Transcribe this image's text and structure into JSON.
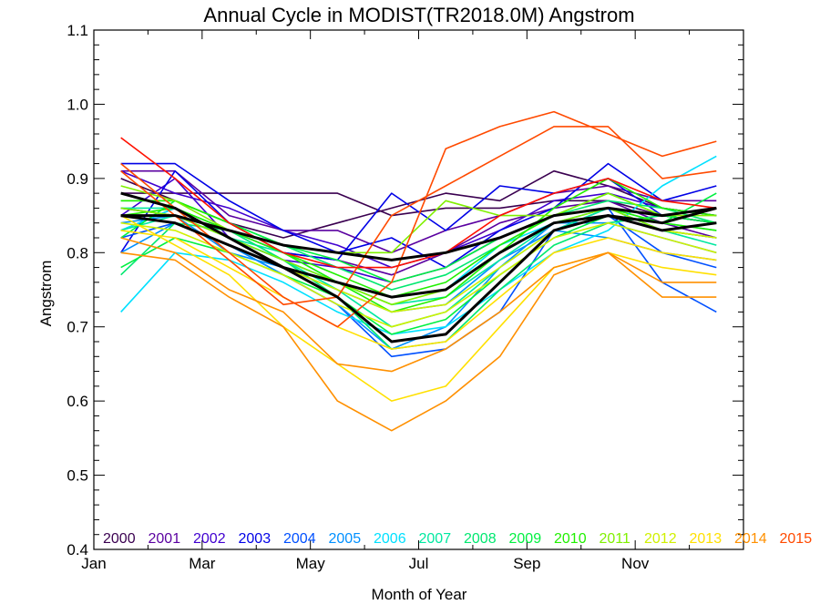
{
  "chart_data": {
    "type": "line",
    "title": "Annual Cycle in MODIST(TR2018.0M) Angstrom",
    "xlabel": "Month of Year",
    "ylabel": "Angstrom",
    "xlim": [
      1,
      13
    ],
    "ylim": [
      0.4,
      1.1
    ],
    "x_ticks": [
      1,
      3,
      5,
      7,
      9,
      11
    ],
    "x_tick_labels": [
      "Jan",
      "Mar",
      "May",
      "Jul",
      "Sep",
      "Nov"
    ],
    "y_ticks": [
      0.4,
      0.5,
      0.6,
      0.7,
      0.8,
      0.9,
      1.0,
      1.1
    ],
    "y_tick_labels": [
      "0.4",
      "0.5",
      "0.6",
      "0.7",
      "0.8",
      "0.9",
      "1.0",
      "1.1"
    ],
    "grid": false,
    "legend_placement": "bottom",
    "x": [
      1.5,
      2.5,
      3.5,
      4.5,
      5.5,
      6.5,
      7.5,
      8.5,
      9.5,
      10.5,
      11.5,
      12.5
    ],
    "series": [
      {
        "name": "2000",
        "color": "#3a0050",
        "values": [
          0.88,
          0.88,
          0.88,
          0.88,
          0.88,
          0.85,
          0.86,
          0.86,
          0.87,
          0.87,
          0.85,
          0.84
        ]
      },
      {
        "name": "2000",
        "color": "#3a0050",
        "values": [
          0.9,
          0.87,
          0.84,
          0.82,
          0.84,
          0.86,
          0.88,
          0.87,
          0.91,
          0.89,
          0.86,
          0.85
        ]
      },
      {
        "name": "2001",
        "color": "#5a00a0",
        "values": [
          0.91,
          0.91,
          0.85,
          0.83,
          0.83,
          0.8,
          0.83,
          0.85,
          0.88,
          0.89,
          0.87,
          0.87
        ]
      },
      {
        "name": "2001",
        "color": "#5a00a0",
        "values": [
          0.86,
          0.85,
          0.83,
          0.8,
          0.79,
          0.77,
          0.8,
          0.84,
          0.86,
          0.87,
          0.84,
          0.82
        ]
      },
      {
        "name": "2002",
        "color": "#4000d0",
        "values": [
          0.91,
          0.88,
          0.86,
          0.83,
          0.81,
          0.78,
          0.8,
          0.83,
          0.87,
          0.88,
          0.86,
          0.85
        ]
      },
      {
        "name": "2002",
        "color": "#4000d0",
        "values": [
          0.85,
          0.9,
          0.82,
          0.79,
          0.78,
          0.76,
          0.78,
          0.82,
          0.85,
          0.86,
          0.83,
          0.82
        ]
      },
      {
        "name": "2003",
        "color": "#0000e6",
        "values": [
          0.92,
          0.92,
          0.87,
          0.83,
          0.8,
          0.82,
          0.78,
          0.83,
          0.86,
          0.92,
          0.87,
          0.89
        ]
      },
      {
        "name": "2003",
        "color": "#0000e6",
        "values": [
          0.8,
          0.91,
          0.84,
          0.8,
          0.79,
          0.88,
          0.83,
          0.89,
          0.88,
          0.9,
          0.85,
          0.84
        ]
      },
      {
        "name": "2004",
        "color": "#0050ff",
        "values": [
          0.83,
          0.86,
          0.82,
          0.79,
          0.76,
          0.74,
          0.75,
          0.8,
          0.84,
          0.85,
          0.8,
          0.78
        ]
      },
      {
        "name": "2004",
        "color": "#0050ff",
        "values": [
          0.82,
          0.84,
          0.81,
          0.77,
          0.73,
          0.66,
          0.67,
          0.72,
          0.83,
          0.86,
          0.76,
          0.72
        ]
      },
      {
        "name": "2005",
        "color": "#0090ff",
        "values": [
          0.8,
          0.84,
          0.81,
          0.77,
          0.73,
          0.67,
          0.7,
          0.78,
          0.84,
          0.84,
          0.82,
          0.8
        ]
      },
      {
        "name": "2005",
        "color": "#0090ff",
        "values": [
          0.84,
          0.85,
          0.8,
          0.78,
          0.75,
          0.72,
          0.73,
          0.79,
          0.83,
          0.82,
          0.8,
          0.79
        ]
      },
      {
        "name": "2006",
        "color": "#00e0ff",
        "values": [
          0.72,
          0.8,
          0.79,
          0.76,
          0.72,
          0.69,
          0.7,
          0.75,
          0.8,
          0.83,
          0.89,
          0.93
        ]
      },
      {
        "name": "2006",
        "color": "#00e0ff",
        "values": [
          0.83,
          0.86,
          0.82,
          0.79,
          0.76,
          0.74,
          0.75,
          0.81,
          0.84,
          0.86,
          0.84,
          0.83
        ]
      },
      {
        "name": "2007",
        "color": "#00e8a0",
        "values": [
          0.83,
          0.85,
          0.82,
          0.8,
          0.76,
          0.73,
          0.74,
          0.79,
          0.84,
          0.85,
          0.83,
          0.81
        ]
      },
      {
        "name": "2007",
        "color": "#00e8a0",
        "values": [
          0.86,
          0.86,
          0.83,
          0.79,
          0.75,
          0.7,
          0.72,
          0.78,
          0.83,
          0.86,
          0.83,
          0.82
        ]
      },
      {
        "name": "2008",
        "color": "#00e870",
        "values": [
          0.77,
          0.84,
          0.83,
          0.79,
          0.74,
          0.67,
          0.68,
          0.75,
          0.81,
          0.84,
          0.85,
          0.86
        ]
      },
      {
        "name": "2008",
        "color": "#00e870",
        "values": [
          0.87,
          0.87,
          0.84,
          0.81,
          0.78,
          0.75,
          0.77,
          0.81,
          0.85,
          0.87,
          0.86,
          0.84
        ]
      },
      {
        "name": "2009",
        "color": "#00f040",
        "values": [
          0.82,
          0.87,
          0.84,
          0.81,
          0.79,
          0.76,
          0.78,
          0.82,
          0.85,
          0.88,
          0.85,
          0.84
        ]
      },
      {
        "name": "2009",
        "color": "#00f040",
        "values": [
          0.78,
          0.82,
          0.8,
          0.77,
          0.74,
          0.69,
          0.71,
          0.77,
          0.82,
          0.85,
          0.84,
          0.88
        ]
      },
      {
        "name": "2010",
        "color": "#20f000",
        "values": [
          0.87,
          0.87,
          0.84,
          0.8,
          0.76,
          0.72,
          0.74,
          0.8,
          0.86,
          0.9,
          0.86,
          0.85
        ]
      },
      {
        "name": "2010",
        "color": "#20f000",
        "values": [
          0.85,
          0.86,
          0.83,
          0.8,
          0.77,
          0.74,
          0.76,
          0.81,
          0.85,
          0.86,
          0.84,
          0.83
        ]
      },
      {
        "name": "2011",
        "color": "#80f000",
        "values": [
          0.89,
          0.87,
          0.83,
          0.81,
          0.8,
          0.8,
          0.87,
          0.85,
          0.85,
          0.88,
          0.85,
          0.85
        ]
      },
      {
        "name": "2011",
        "color": "#80f000",
        "values": [
          0.86,
          0.85,
          0.82,
          0.79,
          0.76,
          0.73,
          0.75,
          0.8,
          0.84,
          0.86,
          0.83,
          0.82
        ]
      },
      {
        "name": "2012",
        "color": "#d0f000",
        "values": [
          0.84,
          0.83,
          0.8,
          0.77,
          0.73,
          0.7,
          0.72,
          0.77,
          0.82,
          0.84,
          0.82,
          0.8
        ]
      },
      {
        "name": "2012",
        "color": "#d0f000",
        "values": [
          0.85,
          0.84,
          0.81,
          0.78,
          0.75,
          0.72,
          0.73,
          0.78,
          0.83,
          0.85,
          0.83,
          0.82
        ]
      },
      {
        "name": "2013",
        "color": "#ffe000",
        "values": [
          0.85,
          0.81,
          0.77,
          0.7,
          0.65,
          0.6,
          0.62,
          0.7,
          0.78,
          0.8,
          0.78,
          0.77
        ]
      },
      {
        "name": "2013",
        "color": "#ffe000",
        "values": [
          0.83,
          0.82,
          0.78,
          0.74,
          0.7,
          0.67,
          0.68,
          0.74,
          0.8,
          0.82,
          0.8,
          0.79
        ]
      },
      {
        "name": "2014",
        "color": "#ff9000",
        "values": [
          0.8,
          0.79,
          0.74,
          0.7,
          0.6,
          0.56,
          0.6,
          0.66,
          0.77,
          0.8,
          0.76,
          0.76
        ]
      },
      {
        "name": "2014",
        "color": "#ff9000",
        "values": [
          0.82,
          0.8,
          0.75,
          0.72,
          0.65,
          0.64,
          0.67,
          0.72,
          0.78,
          0.8,
          0.74,
          0.74
        ]
      },
      {
        "name": "2015",
        "color": "#ff4a00",
        "values": [
          0.92,
          0.86,
          0.8,
          0.74,
          0.7,
          0.76,
          0.94,
          0.97,
          0.99,
          0.96,
          0.93,
          0.95
        ]
      },
      {
        "name": "2015",
        "color": "#ff4a00",
        "values": [
          0.91,
          0.85,
          0.79,
          0.73,
          0.74,
          0.85,
          0.89,
          0.93,
          0.97,
          0.97,
          0.9,
          0.91
        ]
      },
      {
        "color": "#ff1000",
        "values": [
          0.955,
          0.9,
          0.84,
          0.8,
          0.78,
          0.78,
          0.8,
          0.85,
          0.88,
          0.9,
          0.87,
          0.86
        ]
      },
      {
        "color": "#000000",
        "thick": true,
        "values": [
          0.85,
          0.84,
          0.81,
          0.78,
          0.76,
          0.74,
          0.75,
          0.8,
          0.84,
          0.85,
          0.83,
          0.84
        ]
      },
      {
        "color": "#000000",
        "thick": true,
        "values": [
          0.88,
          0.86,
          0.82,
          0.78,
          0.74,
          0.68,
          0.69,
          0.76,
          0.83,
          0.85,
          0.84,
          0.86
        ]
      },
      {
        "color": "#000000",
        "thick": true,
        "values": [
          0.85,
          0.85,
          0.83,
          0.81,
          0.8,
          0.79,
          0.8,
          0.82,
          0.85,
          0.86,
          0.85,
          0.86
        ]
      }
    ],
    "legend": [
      {
        "label": "2000",
        "color": "#3a0050"
      },
      {
        "label": "2001",
        "color": "#5a00a0"
      },
      {
        "label": "2002",
        "color": "#4000d0"
      },
      {
        "label": "2003",
        "color": "#0000e6"
      },
      {
        "label": "2004",
        "color": "#0050ff"
      },
      {
        "label": "2005",
        "color": "#0090ff"
      },
      {
        "label": "2006",
        "color": "#00e0ff"
      },
      {
        "label": "2007",
        "color": "#00e8a0"
      },
      {
        "label": "2008",
        "color": "#00e870"
      },
      {
        "label": "2009",
        "color": "#00f040"
      },
      {
        "label": "2010",
        "color": "#20f000"
      },
      {
        "label": "2011",
        "color": "#80f000"
      },
      {
        "label": "2012",
        "color": "#d0f000"
      },
      {
        "label": "2013",
        "color": "#ffe000"
      },
      {
        "label": "2014",
        "color": "#ff9000"
      },
      {
        "label": "2015",
        "color": "#ff4a00"
      }
    ]
  }
}
